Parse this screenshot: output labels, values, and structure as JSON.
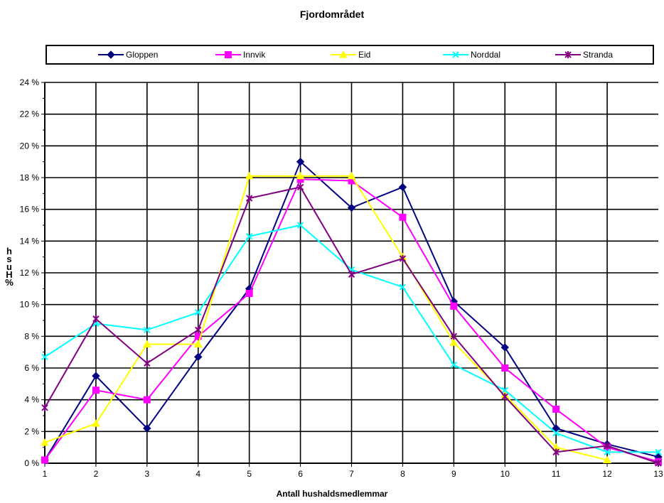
{
  "chart_data": {
    "type": "line",
    "title": "Fjordområdet",
    "xlabel": "Antall hushaldsmedlemmar",
    "ylabel": "% Hush",
    "x": [
      1,
      2,
      3,
      4,
      5,
      6,
      7,
      8,
      9,
      10,
      11,
      12,
      13
    ],
    "ylim": [
      0,
      24
    ],
    "y_tick_labels": [
      "0 %",
      "2 %",
      "4 %",
      "6 %",
      "8 %",
      "10 %",
      "12 %",
      "14 %",
      "16 %",
      "18 %",
      "20 %",
      "22 %",
      "24 %"
    ],
    "x_tick_labels": [
      "1",
      "2",
      "3",
      "4",
      "5",
      "6",
      "7",
      "8",
      "9",
      "10",
      "11",
      "12",
      "13"
    ],
    "grid": true,
    "legend_position": "top",
    "series": [
      {
        "name": "Gloppen",
        "color": "#000080",
        "marker": "diamond",
        "values": [
          0.2,
          5.5,
          2.2,
          6.7,
          11.0,
          19.0,
          16.1,
          17.4,
          10.2,
          7.3,
          2.2,
          1.2,
          0.4
        ]
      },
      {
        "name": "Innvik",
        "color": "#ff00ff",
        "marker": "square",
        "values": [
          0.2,
          4.6,
          4.0,
          8.0,
          10.7,
          17.9,
          17.8,
          15.5,
          9.9,
          6.0,
          3.4,
          1.0,
          0.1
        ]
      },
      {
        "name": "Eid",
        "color": "#ffff00",
        "marker": "triangle",
        "values": [
          1.3,
          2.5,
          7.5,
          7.5,
          18.1,
          18.1,
          18.1,
          13.0,
          7.6,
          4.3,
          1.0,
          0.2,
          null
        ]
      },
      {
        "name": "Norddal",
        "color": "#00ffff",
        "marker": "x",
        "values": [
          6.7,
          8.8,
          8.4,
          9.5,
          14.3,
          15.0,
          12.2,
          11.1,
          6.2,
          4.6,
          1.9,
          0.7,
          0.7
        ]
      },
      {
        "name": "Stranda",
        "color": "#800080",
        "marker": "star",
        "values": [
          3.5,
          9.1,
          6.3,
          8.4,
          16.7,
          17.4,
          11.9,
          12.9,
          8.0,
          4.2,
          0.7,
          1.1,
          0.0
        ]
      }
    ]
  }
}
